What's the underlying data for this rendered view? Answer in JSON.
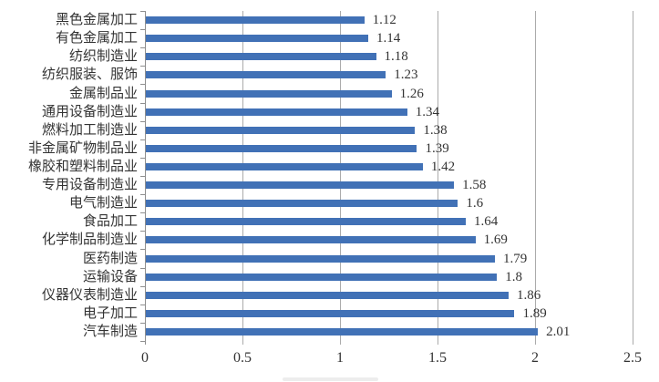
{
  "chart_data": {
    "type": "bar",
    "orientation": "horizontal",
    "title": "",
    "categories": [
      "黑色金属加工",
      "有色金属加工",
      "纺织制造业",
      "纺织服装、服饰",
      "金属制品业",
      "通用设备制造业",
      "燃料加工制造业",
      "非金属矿物制品业",
      "橡胶和塑料制品业",
      "专用设备制造业",
      "电气制造业",
      "食品加工",
      "化学制品制造业",
      "医药制造",
      "运输设备",
      "仪器仪表制造业",
      "电子加工",
      "汽车制造"
    ],
    "values": [
      1.12,
      1.14,
      1.18,
      1.23,
      1.26,
      1.34,
      1.38,
      1.39,
      1.42,
      1.58,
      1.6,
      1.64,
      1.69,
      1.79,
      1.8,
      1.86,
      1.89,
      2.01
    ],
    "value_labels": [
      "1.12",
      "1.14",
      "1.18",
      "1.23",
      "1.26",
      "1.34",
      "1.38",
      "1.39",
      "1.42",
      "1.58",
      "1.6",
      "1.64",
      "1.69",
      "1.79",
      "1.8",
      "1.86",
      "1.89",
      "2.01"
    ],
    "xlim": [
      0,
      2.5
    ],
    "x_tick_values": [
      0,
      0.5,
      1,
      1.5,
      2,
      2.5
    ],
    "x_tick_labels": [
      "0",
      "0.5",
      "1",
      "1.5",
      "2",
      "2.5"
    ],
    "grid": true,
    "legend": "none",
    "colors": {
      "bar": "#4171b6",
      "gridline": "#ababab",
      "axis": "#8f8f8f",
      "text": "#333333",
      "background": "#ffffff"
    }
  }
}
